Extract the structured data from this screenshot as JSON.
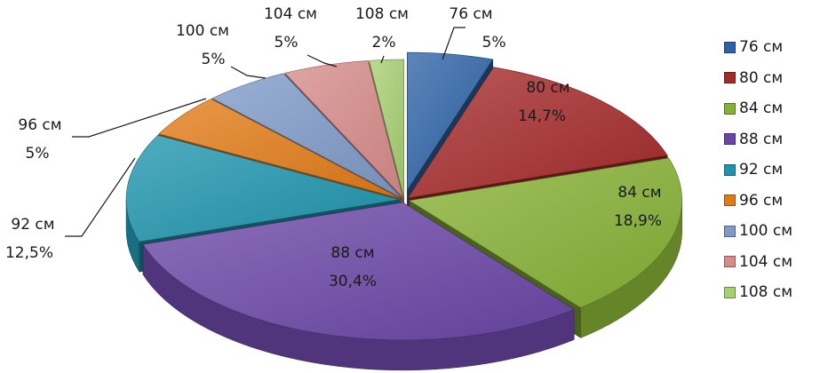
{
  "chart_data": {
    "type": "pie",
    "title": "",
    "legend_position": "right",
    "categories": [
      "76 см",
      "80 см",
      "84 см",
      "88 см",
      "92 см",
      "96 см",
      "100 см",
      "104 см",
      "108 см"
    ],
    "values": [
      5,
      14.7,
      18.9,
      30.4,
      12.5,
      5,
      5,
      5,
      2
    ],
    "value_labels": [
      "5%",
      "14,7%",
      "18,9%",
      "30,4%",
      "12,5%",
      "5%",
      "5%",
      "5%",
      "2%"
    ],
    "colors": [
      "#2e62a6",
      "#a52a2a",
      "#86b135",
      "#6a46a6",
      "#1f95ad",
      "#e27b17",
      "#7e9ac8",
      "#d68b89",
      "#a8cf72"
    ],
    "legend_labels": [
      "76 см",
      " 80 см",
      "84 см",
      "88 см",
      "92 см",
      "96 см",
      "100 см",
      "104 см",
      "108 см"
    ]
  }
}
